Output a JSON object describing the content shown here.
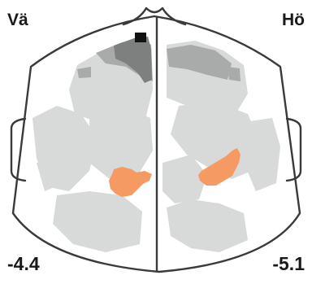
{
  "labels": {
    "left_hemisphere": "Vä",
    "right_hemisphere": "Hö"
  },
  "values": {
    "left": "-4.4",
    "right": "-5.1"
  },
  "colors": {
    "outline": "#3a3a3a",
    "light_gray": "#d8d9d9",
    "mid_gray": "#a9abaa",
    "dark_gray": "#7e807f",
    "black": "#111111",
    "orange": "#f59a63"
  }
}
